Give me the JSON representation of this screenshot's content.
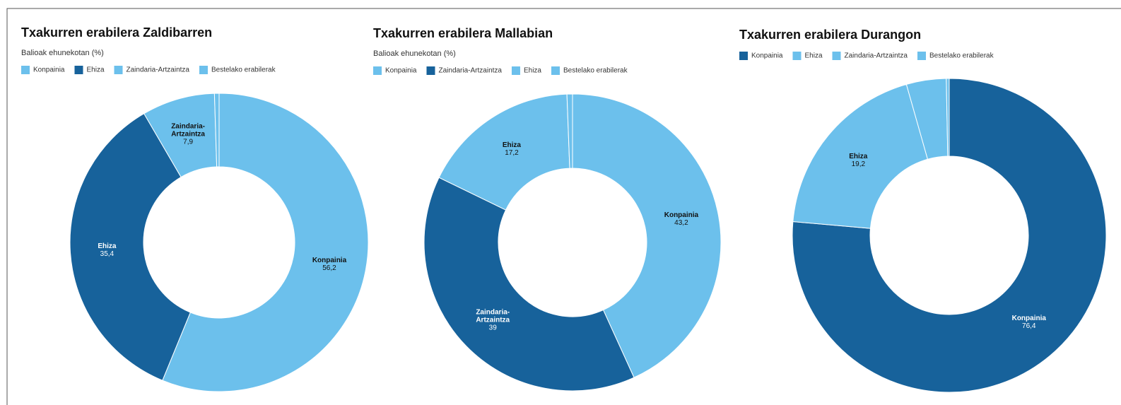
{
  "chart_data": [
    {
      "type": "donut",
      "title": "Txakurren erabilera Zaldibarren",
      "subtitle": "Balioak ehunekotan (%)",
      "categories": [
        "Konpainia",
        "Ehiza",
        "Zaindaria-Artzaintza",
        "Bestelako erabilerak"
      ],
      "values": [
        56.2,
        35.4,
        7.9,
        0.5
      ],
      "value_labels": [
        "56,2",
        "35,4",
        "7,9",
        null
      ],
      "colors": [
        "#6cc0ec",
        "#17629b",
        "#6cc0ec",
        "#6cc0ec"
      ]
    },
    {
      "type": "donut",
      "title": "Txakurren erabilera Mallabian",
      "subtitle": "Balioak ehunekotan (%)",
      "categories": [
        "Konpainia",
        "Zaindaria-Artzaintza",
        "Ehiza",
        "Bestelako erabilerak"
      ],
      "values": [
        43.2,
        39,
        17.2,
        0.6
      ],
      "value_labels": [
        "43,2",
        "39",
        "17,2",
        null
      ],
      "colors": [
        "#6cc0ec",
        "#17629b",
        "#6cc0ec",
        "#6cc0ec"
      ]
    },
    {
      "type": "donut",
      "title": "Txakurren erabilera Durangon",
      "categories": [
        "Konpainia",
        "Ehiza",
        "Zaindaria-Artzaintza",
        "Bestelako erabilerak"
      ],
      "values": [
        76.4,
        19.2,
        4.1,
        0.3
      ],
      "value_labels": [
        "76,4",
        "19,2",
        null,
        null
      ],
      "colors": [
        "#17629b",
        "#6cc0ec",
        "#6cc0ec",
        "#6cc0ec"
      ]
    }
  ]
}
